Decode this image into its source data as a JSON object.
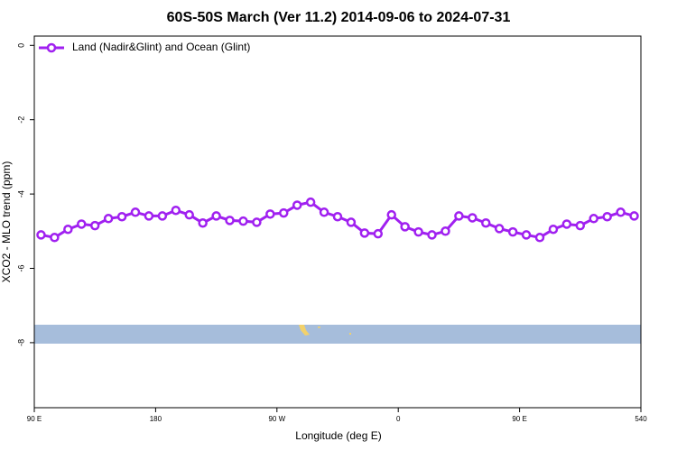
{
  "chart_data": {
    "type": "line",
    "title": "60S-50S March (Ver 11.2)   2014-09-06 to 2024-07-31",
    "xlabel": "Longitude (deg E)",
    "ylabel": "XCO2 - MLO trend (ppm)",
    "x": [
      95,
      105,
      115,
      125,
      135,
      145,
      155,
      165,
      175,
      185,
      195,
      205,
      215,
      225,
      235,
      245,
      255,
      265,
      275,
      285,
      295,
      305,
      315,
      325,
      335,
      345,
      355,
      365,
      375,
      385,
      395,
      405,
      415,
      425,
      435,
      445,
      455,
      465,
      475,
      485,
      495,
      505,
      515,
      525,
      535
    ],
    "series": [
      {
        "name": "Land (Nadir&Glint) and Ocean (Glint)",
        "color": "#a020f0",
        "values": [
          -5.1,
          -5.17,
          -4.95,
          -4.81,
          -4.85,
          -4.66,
          -4.61,
          -4.49,
          -4.59,
          -4.59,
          -4.44,
          -4.56,
          -4.78,
          -4.59,
          -4.71,
          -4.73,
          -4.76,
          -4.54,
          -4.51,
          -4.3,
          -4.22,
          -4.49,
          -4.61,
          -4.76,
          -5.05,
          -5.07,
          -4.56,
          -4.88,
          -5.02,
          -5.1,
          -5.0,
          -4.59,
          -4.64,
          -4.78,
          -4.93,
          -5.02,
          -5.1,
          -5.17,
          -4.95,
          -4.81,
          -4.85,
          -4.66,
          -4.61,
          -4.49,
          -4.59
        ]
      }
    ],
    "xlim": [
      90,
      540
    ],
    "xticks": [
      {
        "value": 90,
        "label": "90 E"
      },
      180,
      {
        "value": 270,
        "label": "90 W"
      },
      {
        "value": 360,
        "label": "0"
      },
      {
        "value": 450,
        "label": "90 E"
      },
      540
    ],
    "ylim": [
      -9.75,
      0.25
    ],
    "yticks": [
      0,
      -2,
      -4,
      -6,
      -8
    ],
    "legend": "top-left"
  }
}
